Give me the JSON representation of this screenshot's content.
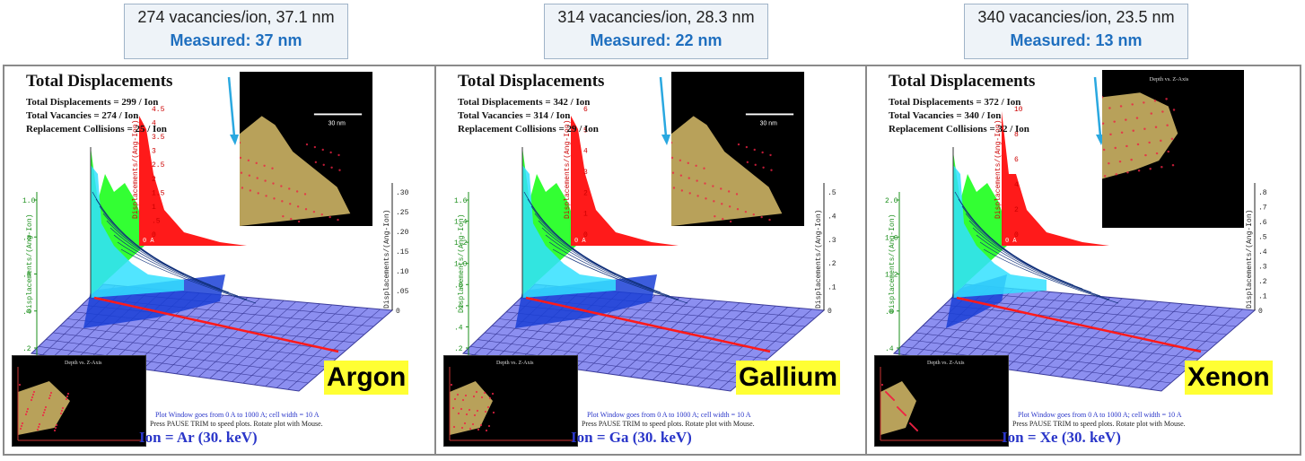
{
  "captions": [
    {
      "simulated": "274 vacancies/ion, 37.1 nm",
      "measured": "Measured: 37 nm"
    },
    {
      "simulated": "314 vacancies/ion, 28.3 nm",
      "measured": "Measured: 22 nm"
    },
    {
      "simulated": "340 vacancies/ion, 23.5 nm",
      "measured": "Measured: 13 nm"
    }
  ],
  "panels": [
    {
      "title": "Total Displacements",
      "total_displacements": "Total Displacements = 299 / Ion",
      "total_vacancies": "Total Vacancies = 274 / Ion",
      "replacement_collisions": "Replacement Collisions = 25 / Ion",
      "element_label": "Argon",
      "ion_label": "Ion = Ar (30. keV)",
      "scale_bar": "30 nm",
      "plot_window_1": "Plot Window goes from 0 A to 1000 A;  cell width = 10 A",
      "plot_window_2": "Press PAUSE TRIM to speed plots.    Rotate plot with Mouse.",
      "inset_title": "Depth vs. Z-Axis",
      "left_axis_ticks": [
        "1.0",
        ".8",
        ".6",
        ".4",
        ".2"
      ],
      "right_axis_ticks": [
        ".30",
        ".25",
        ".20",
        ".15",
        ".10",
        ".05",
        "0"
      ],
      "red_axis_ticks": [
        "4.5",
        "4",
        "3.5",
        "3",
        "2.5",
        "2",
        "1.5",
        "1",
        ".5",
        "0"
      ],
      "axis_label": "Displacements/(Ang-Ion)",
      "origin_label": "0 A"
    },
    {
      "title": "Total Displacements",
      "total_displacements": "Total Displacements = 342 / Ion",
      "total_vacancies": "Total Vacancies = 314 / Ion",
      "replacement_collisions": "Replacement Collisions = 29 / Ion",
      "element_label": "Gallium",
      "ion_label": "Ion = Ga (30. keV)",
      "scale_bar": "30 nm",
      "plot_window_1": "Plot Window goes from 0 A to 1000 A;  cell width = 10 A",
      "plot_window_2": "Press PAUSE TRIM to speed plots.    Rotate plot with Mouse.",
      "inset_title": "Depth vs. Z-Axis",
      "left_axis_ticks": [
        "1.6",
        "1.4",
        "1.2",
        "1.0",
        ".8",
        ".6",
        ".4",
        ".2"
      ],
      "right_axis_ticks": [
        ".5",
        ".4",
        ".3",
        ".2",
        ".1",
        "0"
      ],
      "red_axis_ticks": [
        "6",
        "5",
        "4",
        "3",
        "2",
        "1",
        "0"
      ],
      "axis_label": "Displacements/(Ang-Ion)",
      "origin_label": "0 A"
    },
    {
      "title": "Total Displacements",
      "total_displacements": "Total Displacements = 372 / Ion",
      "total_vacancies": "Total Vacancies = 340 / Ion",
      "replacement_collisions": "Replacement Collisions = 32 / Ion",
      "element_label": "Xenon",
      "ion_label": "Ion = Xe (30. keV)",
      "scale_bar": "",
      "plot_window_1": "Plot Window goes from 0 A to 1000 A;  cell width = 10 A",
      "plot_window_2": "Press PAUSE TRIM to speed plots.    Rotate plot with Mouse.",
      "inset_title": "Depth vs. Z-Axis",
      "left_axis_ticks": [
        "2.0",
        "1.6",
        "1.2",
        ".8",
        ".4"
      ],
      "right_axis_ticks": [
        ".8",
        ".7",
        ".6",
        ".5",
        ".4",
        ".3",
        ".2",
        ".1",
        "0"
      ],
      "red_axis_ticks": [
        "10",
        "8",
        "6",
        "4",
        "2",
        "0"
      ],
      "axis_label": "Displacements/(Ang-Ion)",
      "origin_label": "0 A"
    }
  ],
  "colors": {
    "caption_measured": "#1f6fbf",
    "element_label_bg": "#ffff33",
    "ion_label": "#2a36c9",
    "arrow": "#2aa8e0",
    "grid_floor": "#8c8ff0",
    "red_profile": "#ff1a1a",
    "green_profile": "#33ff33",
    "cyan_profile": "#33e0ff",
    "blue_cloud": "#1a3fd6"
  }
}
